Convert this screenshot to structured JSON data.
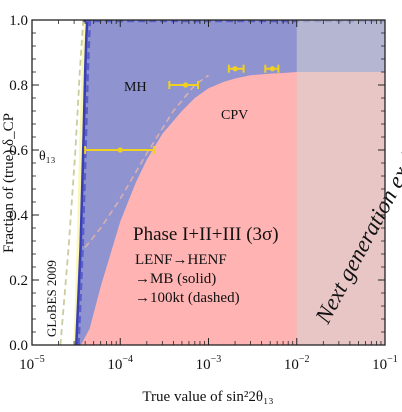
{
  "chart_data": {
    "type": "area",
    "xlabel": "True value of sin²2θ₁₃",
    "ylabel": "Fraction of (true) δ_CP",
    "x_scale": "log",
    "xlim": [
      1e-05,
      0.1
    ],
    "ylim": [
      0,
      1
    ],
    "x_ticks": [
      {
        "value": 1e-05,
        "base": "10",
        "exp": "−5"
      },
      {
        "value": 0.0001,
        "base": "10",
        "exp": "−4"
      },
      {
        "value": 0.001,
        "base": "10",
        "exp": "−3"
      },
      {
        "value": 0.01,
        "base": "10",
        "exp": "−2"
      },
      {
        "value": 0.1,
        "base": "10",
        "exp": "−1"
      }
    ],
    "y_ticks": [
      "0.0",
      "0.2",
      "0.4",
      "0.6",
      "0.8",
      "1.0"
    ],
    "regions": {
      "cpv": {
        "color": "#ffb3b3",
        "x": [
          3.58e-05,
          4.5e-05,
          6e-05,
          0.0001,
          0.00015,
          0.0002,
          0.0003,
          0.0005,
          0.0007,
          0.001,
          0.0015,
          0.002,
          0.003,
          0.005,
          0.007,
          0.01,
          0.1
        ],
        "y": [
          0.0,
          0.05,
          0.18,
          0.38,
          0.5,
          0.57,
          0.65,
          0.72,
          0.76,
          0.79,
          0.81,
          0.82,
          0.83,
          0.835,
          0.837,
          0.84,
          0.84
        ]
      },
      "mh": {
        "color": "#8f93cf",
        "x": [
          3.18e-05,
          3.55e-05,
          3.85e-05,
          4.02e-05,
          4.13e-05,
          4.23e-05
        ],
        "y": [
          0.0,
          0.3,
          0.65,
          0.85,
          0.95,
          1.0
        ]
      },
      "theta13": {
        "color": "#fbf7b4",
        "x": [
          2.95e-05,
          3.2e-05,
          3.45e-05,
          3.7e-05,
          3.85e-05
        ],
        "y": [
          0.0,
          0.3,
          0.65,
          0.9,
          1.0
        ]
      },
      "next_generation_excluded": {
        "color": "rgba(214,214,214,0.55)",
        "x_from": 0.01,
        "x_to": 0.1
      }
    },
    "curves": {
      "mh_dashed": {
        "color": "#5a5fc8",
        "x": [
          3.37e-05,
          3.75e-05,
          4.1e-05,
          4.3e-05,
          4.45e-05,
          4.55e-05
        ],
        "y": [
          0.0,
          0.3,
          0.65,
          0.85,
          0.95,
          1.0
        ]
      },
      "globes_2009": {
        "color": "#c8cc9e",
        "x": [
          2.1e-05,
          2.6e-05,
          3.1e-05,
          3.5e-05,
          3.8e-05
        ],
        "y": [
          0.0,
          0.3,
          0.6,
          0.85,
          1.0
        ]
      },
      "cpv_dashed": {
        "color": "#d9b0b0",
        "x": [
          4e-05,
          6e-05,
          0.0001,
          0.0002,
          0.0004,
          0.0007,
          0.001
        ],
        "y": [
          0.3,
          0.36,
          0.45,
          0.59,
          0.72,
          0.8,
          0.83
        ]
      }
    },
    "error_bars": {
      "color": "#f0d020",
      "points": [
        {
          "x": 0.0001,
          "xmin": 4e-05,
          "xmax": 0.00024,
          "y": 0.6
        },
        {
          "x": 0.00055,
          "xmin": 0.00036,
          "xmax": 0.00076,
          "y": 0.8
        },
        {
          "x": 0.002,
          "xmin": 0.0017,
          "xmax": 0.0025,
          "y": 0.85
        },
        {
          "x": 0.0053,
          "xmin": 0.0044,
          "xmax": 0.0062,
          "y": 0.85
        }
      ]
    },
    "annotations": {
      "mh": "MH",
      "cpv": "CPV",
      "theta13": "θ₁₃",
      "globes": "GLoBES 2009",
      "phase": "Phase I+II+III (3σ)",
      "line1": "LENF→HENF",
      "line2": "→MB (solid)",
      "line3": "→100kt (dashed)",
      "excluded": "Next generation excluded"
    }
  }
}
